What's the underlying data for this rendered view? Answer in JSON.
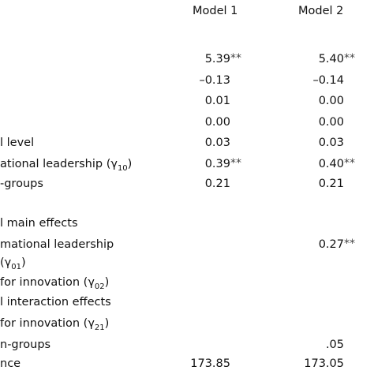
{
  "table": {
    "header": [
      "Model 1",
      "Model 2"
    ],
    "rows": [
      {
        "label": null,
        "m1": "5.39",
        "m1_sig": "**",
        "m2": "5.40",
        "m2_sig": "**"
      },
      {
        "label": null,
        "m1": "–0.13",
        "m2": "–0.14"
      },
      {
        "label": null,
        "m1": "0.01",
        "m2": "0.00"
      },
      {
        "label": null,
        "m1": "0.00",
        "m2": "0.00"
      },
      {
        "label": {
          "text": "l level"
        },
        "m1": "0.03",
        "m2": "0.03"
      },
      {
        "label": {
          "text": "ational leadership (γ",
          "sub": "10",
          "after": ")"
        },
        "m1": "0.39",
        "m1_sig": "**",
        "m2": "0.40",
        "m2_sig": "**"
      },
      {
        "label": {
          "text": "-groups"
        },
        "m1": "0.21",
        "m2": "0.21"
      },
      {
        "label": {
          "text": "l main effects"
        }
      },
      {
        "label": {
          "text": "mational leadership"
        },
        "m2": "0.27",
        "m2_sig": "**"
      },
      {
        "label": {
          "text": "(γ",
          "sub": "01",
          "after": ")"
        }
      },
      {
        "label": {
          "text": "for innovation (γ",
          "sub": "02",
          "after": ")"
        }
      },
      {
        "label": {
          "text": "l interaction effects"
        }
      },
      {
        "label": {
          "text": "for innovation (γ",
          "sub": "21",
          "after": ")"
        }
      },
      {
        "label": {
          "text": "n-groups"
        },
        "m2": ".05"
      },
      {
        "label": {
          "text": "nce"
        },
        "m1": "173.85",
        "m2": "173.05"
      }
    ]
  }
}
